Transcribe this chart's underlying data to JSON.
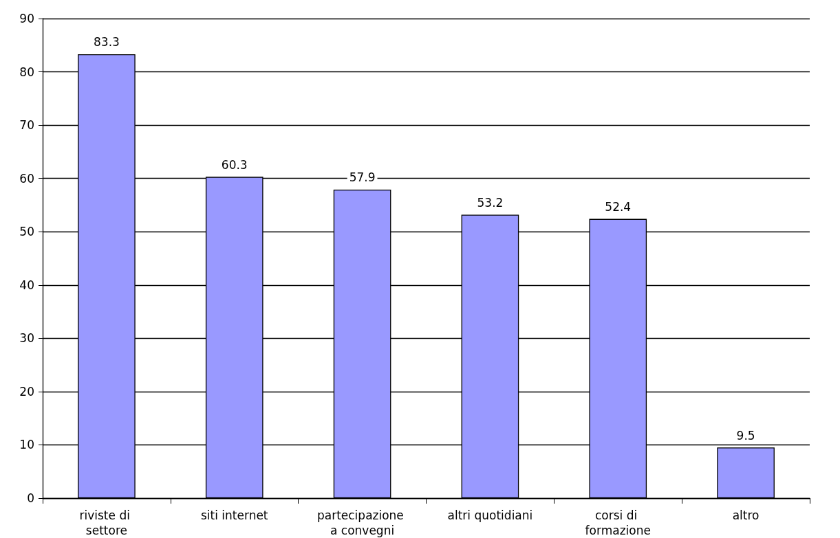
{
  "chart_data": {
    "type": "bar",
    "categories": [
      "riviste di settore",
      "siti internet",
      "partecipazione a convegni",
      "altri quotidiani",
      "corsi di formazione",
      "altro"
    ],
    "values": [
      83.3,
      60.3,
      57.9,
      53.2,
      52.4,
      9.5
    ],
    "color": "#9999ff",
    "ylim": [
      0,
      90
    ],
    "yticks": [
      0,
      10,
      20,
      30,
      40,
      50,
      60,
      70,
      80,
      90
    ],
    "grid": "y",
    "data_labels": true
  }
}
